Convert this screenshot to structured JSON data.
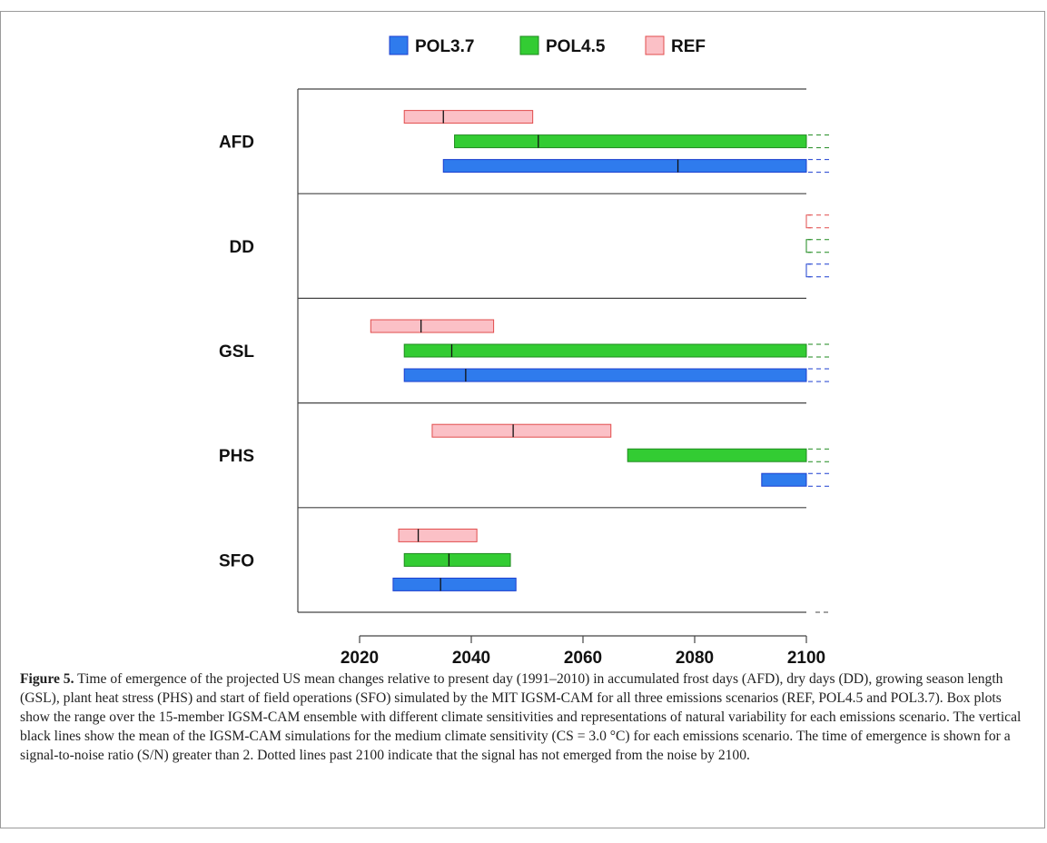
{
  "chart_data": {
    "type": "bar",
    "orientation": "horizontal-range",
    "xlim": [
      2010,
      2105
    ],
    "x_ticks": [
      2020,
      2040,
      2060,
      2080,
      2100
    ],
    "categories": [
      "AFD",
      "DD",
      "GSL",
      "PHS",
      "SFO"
    ],
    "series": [
      {
        "name": "POL3.7",
        "color": "#2f7bed",
        "stroke": "#1c3fcf",
        "ranges": [
          {
            "category": "AFD",
            "start": 2035,
            "end": 2100,
            "mean": 2077,
            "not_emerged": true
          },
          {
            "category": "DD",
            "start": 2100,
            "end": 2100,
            "mean": null,
            "not_emerged": true
          },
          {
            "category": "GSL",
            "start": 2028,
            "end": 2100,
            "mean": 2039,
            "not_emerged": true
          },
          {
            "category": "PHS",
            "start": 2092,
            "end": 2100,
            "mean": null,
            "not_emerged": true
          },
          {
            "category": "SFO",
            "start": 2026,
            "end": 2048,
            "mean": 2034.5,
            "not_emerged": false
          }
        ]
      },
      {
        "name": "POL4.5",
        "color": "#33cc33",
        "stroke": "#1e8a1e",
        "ranges": [
          {
            "category": "AFD",
            "start": 2037,
            "end": 2100,
            "mean": 2052,
            "not_emerged": true
          },
          {
            "category": "DD",
            "start": 2100,
            "end": 2100,
            "mean": null,
            "not_emerged": true
          },
          {
            "category": "GSL",
            "start": 2028,
            "end": 2100,
            "mean": 2036.5,
            "not_emerged": true
          },
          {
            "category": "PHS",
            "start": 2068,
            "end": 2100,
            "mean": null,
            "not_emerged": true
          },
          {
            "category": "SFO",
            "start": 2028,
            "end": 2047,
            "mean": 2036,
            "not_emerged": false
          }
        ]
      },
      {
        "name": "REF",
        "color": "#fbc0c6",
        "stroke": "#e14c4c",
        "ranges": [
          {
            "category": "AFD",
            "start": 2028,
            "end": 2051,
            "mean": 2035,
            "not_emerged": false
          },
          {
            "category": "DD",
            "start": 2100,
            "end": 2100,
            "mean": null,
            "not_emerged": true
          },
          {
            "category": "GSL",
            "start": 2022,
            "end": 2044,
            "mean": 2031,
            "not_emerged": false
          },
          {
            "category": "PHS",
            "start": 2033,
            "end": 2065,
            "mean": 2047.5,
            "not_emerged": false
          },
          {
            "category": "SFO",
            "start": 2027,
            "end": 2041,
            "mean": 2030.5,
            "not_emerged": false
          }
        ]
      }
    ],
    "legend_order": [
      "POL3.7",
      "POL4.5",
      "REF"
    ],
    "legend_position": "top"
  },
  "caption": {
    "label": "Figure 5.",
    "text": " Time of emergence of the projected US mean changes relative to present day (1991–2010) in accumulated frost days (AFD), dry days (DD), growing season length (GSL), plant heat stress (PHS) and start of field operations (SFO) simulated by the MIT IGSM-CAM for all three emissions scenarios (REF, POL4.5 and POL3.7). Box plots show the range over the 15-member IGSM-CAM ensemble with different climate sensitivities and representations of natural variability for each emissions scenario. The vertical black lines show the mean of the IGSM-CAM simulations for the medium climate sensitivity (CS = 3.0 °C) for each emissions scenario. The time of emergence is shown for a signal-to-noise ratio (S/N) greater than 2. Dotted lines past 2100 indicate that the signal has not emerged from the noise by 2100."
  }
}
